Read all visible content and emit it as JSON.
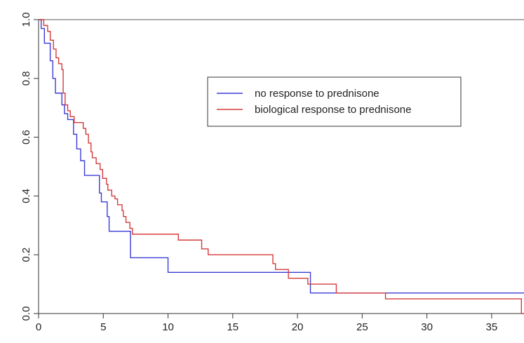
{
  "chart_data": {
    "type": "line",
    "title": "",
    "xlabel": "",
    "ylabel": "",
    "xlim": [
      0,
      37.5
    ],
    "ylim": [
      0,
      1.0
    ],
    "x_ticks": [
      0,
      5,
      10,
      15,
      20,
      25,
      30,
      35
    ],
    "x_tick_labels": [
      "0",
      "5",
      "10",
      "15",
      "20",
      "25",
      "30",
      "35"
    ],
    "y_ticks": [
      0.0,
      0.2,
      0.4,
      0.6,
      0.8,
      1.0
    ],
    "y_tick_labels": [
      "0.0",
      "0.2",
      "0.4",
      "0.6",
      "0.8",
      "1.0"
    ],
    "grid": false,
    "legend_position": "upper-right",
    "series": [
      {
        "name": "no response to prednisone",
        "color": "#3b3bd6",
        "step": true,
        "points": [
          [
            0,
            1.0
          ],
          [
            0.2,
            0.97
          ],
          [
            0.45,
            0.92
          ],
          [
            0.9,
            0.86
          ],
          [
            1.1,
            0.8
          ],
          [
            1.3,
            0.75
          ],
          [
            1.8,
            0.71
          ],
          [
            2.0,
            0.68
          ],
          [
            2.25,
            0.66
          ],
          [
            2.7,
            0.61
          ],
          [
            2.95,
            0.56
          ],
          [
            3.25,
            0.52
          ],
          [
            3.55,
            0.47
          ],
          [
            4.7,
            0.41
          ],
          [
            4.85,
            0.38
          ],
          [
            5.3,
            0.33
          ],
          [
            5.45,
            0.28
          ],
          [
            7.1,
            0.19
          ],
          [
            10.0,
            0.14
          ],
          [
            21.0,
            0.07
          ],
          [
            37.5,
            0.07
          ]
        ]
      },
      {
        "name": "biological response to prednisone",
        "color": "#d63b3b",
        "step": true,
        "points": [
          [
            0,
            1.0
          ],
          [
            0.4,
            0.98
          ],
          [
            0.7,
            0.96
          ],
          [
            0.9,
            0.93
          ],
          [
            1.15,
            0.9
          ],
          [
            1.35,
            0.87
          ],
          [
            1.55,
            0.85
          ],
          [
            1.8,
            0.83
          ],
          [
            1.9,
            0.75
          ],
          [
            2.05,
            0.71
          ],
          [
            2.25,
            0.69
          ],
          [
            2.45,
            0.67
          ],
          [
            2.75,
            0.65
          ],
          [
            3.45,
            0.63
          ],
          [
            3.65,
            0.61
          ],
          [
            3.85,
            0.58
          ],
          [
            4.05,
            0.55
          ],
          [
            4.15,
            0.53
          ],
          [
            4.45,
            0.51
          ],
          [
            4.75,
            0.49
          ],
          [
            4.95,
            0.46
          ],
          [
            5.25,
            0.44
          ],
          [
            5.35,
            0.42
          ],
          [
            5.65,
            0.4
          ],
          [
            5.9,
            0.39
          ],
          [
            6.1,
            0.37
          ],
          [
            6.45,
            0.35
          ],
          [
            6.55,
            0.33
          ],
          [
            6.75,
            0.31
          ],
          [
            7.05,
            0.29
          ],
          [
            7.25,
            0.27
          ],
          [
            10.8,
            0.25
          ],
          [
            12.6,
            0.22
          ],
          [
            13.1,
            0.2
          ],
          [
            18.1,
            0.17
          ],
          [
            18.3,
            0.15
          ],
          [
            19.3,
            0.12
          ],
          [
            20.8,
            0.1
          ],
          [
            23.0,
            0.07
          ],
          [
            26.8,
            0.05
          ],
          [
            37.3,
            0.0
          ],
          [
            37.5,
            0.0
          ]
        ]
      }
    ]
  }
}
